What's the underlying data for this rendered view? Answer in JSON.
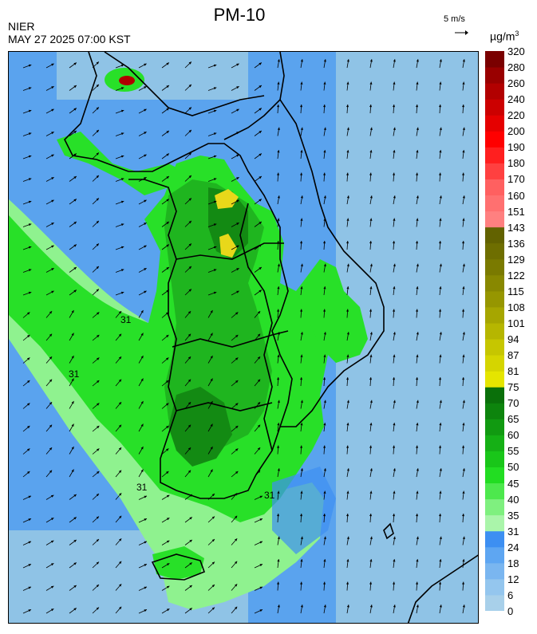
{
  "header": {
    "title": "PM-10",
    "agency": "NIER",
    "datetime": "MAY 27 2025 07:00 KST",
    "wind_reference": "5 m/s",
    "unit_base": "µg/m",
    "unit_exp": "3"
  },
  "map": {
    "contour_labels": [
      "31",
      "31",
      "31",
      "31"
    ],
    "colors": {
      "sea_light": "#8fc3e6",
      "sea_mid": "#5aa3ee",
      "low": "#3d8ff2",
      "light_green": "#8ff28f",
      "green": "#28e028",
      "mid_green": "#1fb51f",
      "dark_green": "#138a13",
      "yellow": "#e8d81a",
      "red_hot": "#b00000",
      "border": "#000000",
      "arrow": "#000000"
    }
  },
  "legend": {
    "levels": [
      "0",
      "6",
      "12",
      "18",
      "24",
      "31",
      "35",
      "40",
      "45",
      "50",
      "55",
      "60",
      "65",
      "70",
      "75",
      "81",
      "87",
      "94",
      "101",
      "108",
      "115",
      "122",
      "129",
      "136",
      "143",
      "151",
      "160",
      "170",
      "180",
      "190",
      "200",
      "220",
      "240",
      "260",
      "280",
      "320"
    ],
    "colors": [
      "#a8d0ea",
      "#94c6ee",
      "#7ab6f0",
      "#5ea6f2",
      "#3d8ff2",
      "#aaf5aa",
      "#7ff07f",
      "#4de84d",
      "#22dd22",
      "#19c619",
      "#15b015",
      "#119a11",
      "#0d840d",
      "#0a700a",
      "#e5e500",
      "#d5d500",
      "#c6c600",
      "#b6b600",
      "#a6a600",
      "#969600",
      "#888800",
      "#7a7a00",
      "#6e6e00",
      "#626200",
      "#ff8080",
      "#ff7070",
      "#ff6060",
      "#ff4040",
      "#ff1f1f",
      "#ff0000",
      "#e50000",
      "#cc0000",
      "#b20000",
      "#990000",
      "#7a0000"
    ]
  }
}
